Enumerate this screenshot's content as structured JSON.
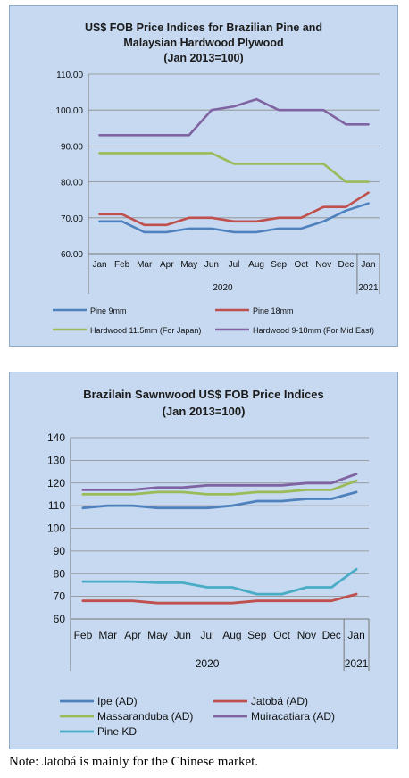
{
  "chart_data": [
    {
      "type": "line",
      "title": "US$ FOB Price Indices for Brazilian Pine and",
      "title2": "Malaysian Hardwood Plywood",
      "subtitle": "(Jan 2013=100)",
      "categories": [
        "Jan",
        "Feb",
        "Mar",
        "Apr",
        "May",
        "Jun",
        "Jul",
        "Aug",
        "Sep",
        "Oct",
        "Nov",
        "Dec",
        "Jan"
      ],
      "year_labels": [
        "2020",
        "2021"
      ],
      "ylim": [
        60,
        110
      ],
      "yticks": [
        "60.00",
        "70.00",
        "80.00",
        "90.00",
        "100.00",
        "110.00"
      ],
      "grid": true,
      "legend_position": "bottom",
      "series": [
        {
          "name": "Pine 9mm",
          "color": "#4f81bd",
          "values": [
            69,
            69,
            66,
            66,
            67,
            67,
            66,
            66,
            67,
            67,
            69,
            72,
            74
          ]
        },
        {
          "name": "Pine 18mm",
          "color": "#c0504d",
          "values": [
            71,
            71,
            68,
            68,
            70,
            70,
            69,
            69,
            70,
            70,
            73,
            73,
            77
          ]
        },
        {
          "name": "Hardwood 11.5mm (For Japan)",
          "color": "#9bbb59",
          "values": [
            88,
            88,
            88,
            88,
            88,
            88,
            85,
            85,
            85,
            85,
            85,
            80,
            80
          ]
        },
        {
          "name": "Hardwood 9-18mm (For Mid East)",
          "color": "#8064a2",
          "values": [
            93,
            93,
            93,
            93,
            93,
            100,
            101,
            103,
            100,
            100,
            100,
            96,
            96
          ]
        }
      ]
    },
    {
      "type": "line",
      "title": "Brazilain Sawnwood US$ FOB Price Indices",
      "subtitle": "(Jan 2013=100)",
      "categories": [
        "Feb",
        "Mar",
        "Apr",
        "May",
        "Jun",
        "Jul",
        "Aug",
        "Sep",
        "Oct",
        "Nov",
        "Dec",
        "Jan"
      ],
      "year_labels": [
        "2020",
        "2021"
      ],
      "ylim": [
        60,
        140
      ],
      "yticks": [
        "60",
        "70",
        "80",
        "90",
        "100",
        "110",
        "120",
        "130",
        "140"
      ],
      "grid": true,
      "legend_position": "bottom",
      "series": [
        {
          "name": "Ipe (AD)",
          "color": "#4f81bd",
          "values": [
            109,
            110,
            110,
            109,
            109,
            109,
            110,
            112,
            112,
            113,
            113,
            116
          ]
        },
        {
          "name": "Jatobá (AD)",
          "color": "#c0504d",
          "values": [
            68,
            68,
            68,
            67,
            67,
            67,
            67,
            68,
            68,
            68,
            68,
            71
          ]
        },
        {
          "name": "Massaranduba (AD)",
          "color": "#9bbb59",
          "values": [
            115,
            115,
            115,
            116,
            116,
            115,
            115,
            116,
            116,
            117,
            117,
            121
          ]
        },
        {
          "name": "Muiracatiara (AD)",
          "color": "#8064a2",
          "values": [
            117,
            117,
            117,
            118,
            118,
            119,
            119,
            119,
            119,
            120,
            120,
            124
          ]
        },
        {
          "name": "Pine KD",
          "color": "#4bacc6",
          "values": [
            76.5,
            76.5,
            76.5,
            76,
            76,
            74,
            74,
            71,
            71,
            74,
            74,
            82
          ]
        }
      ]
    }
  ],
  "note": "Note: Jatobá is mainly for the Chinese market."
}
